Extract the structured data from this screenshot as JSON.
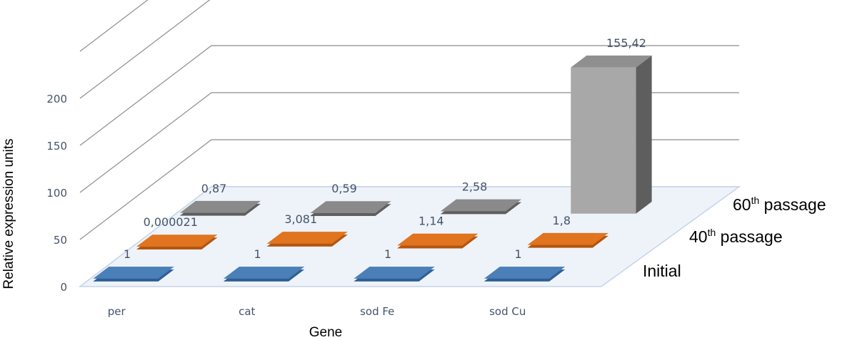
{
  "chart_data": {
    "type": "bar3d",
    "title": "",
    "xlabel": "Gene",
    "ylabel": "Relative expression units",
    "ylim": [
      0,
      200
    ],
    "yticks": [
      "0",
      "50",
      "100",
      "150",
      "200"
    ],
    "categories": [
      "per",
      "cat",
      "sod Fe",
      "sod Cu"
    ],
    "series": [
      {
        "name": "Initial",
        "name_prefix": "Initial",
        "name_sup": "",
        "name_suffix": "",
        "color": "#4a7fb8",
        "color_side": "#2f5f96",
        "values": [
          1,
          1,
          1,
          1
        ],
        "labels": [
          "1",
          "1",
          "1",
          "1"
        ]
      },
      {
        "name": "40th passage",
        "name_prefix": "40",
        "name_sup": "th",
        "name_suffix": " passage",
        "color": "#e0741f",
        "color_side": "#b45510",
        "values": [
          2.1e-05,
          3.081,
          1.14,
          1.8
        ],
        "labels": [
          "0,000021",
          "3,081",
          "1,14",
          "1,8"
        ]
      },
      {
        "name": "60th passage",
        "name_prefix": "60",
        "name_sup": "th",
        "name_suffix": " passage",
        "color": "#8a8a8a",
        "color_side": "#5e5e5e",
        "values": [
          0.87,
          0.59,
          2.58,
          155.42
        ],
        "labels": [
          "0,87",
          "0,59",
          "2,58",
          "155,42"
        ]
      }
    ]
  }
}
